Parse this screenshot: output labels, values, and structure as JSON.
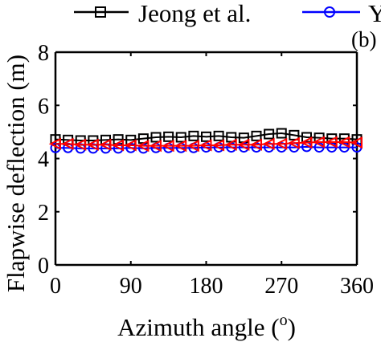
{
  "chart_data": {
    "type": "line",
    "title": "",
    "panel_label": "(b)",
    "xlabel": "Azimuth angle (",
    "xlabel_sup": "o",
    "xlabel_close": ")",
    "ylabel": "Flapwise deflection (m)",
    "xlim": [
      0,
      360
    ],
    "ylim": [
      0,
      8
    ],
    "xticks": [
      0,
      90,
      180,
      270,
      360
    ],
    "yticks": [
      0,
      2,
      4,
      6,
      8
    ],
    "grid": false,
    "legend_position": "top",
    "legend_truncated": "Y",
    "series": [
      {
        "name": "Jeong et al.",
        "color": "#000000",
        "marker": "square",
        "x": [
          0,
          15,
          30,
          45,
          60,
          75,
          90,
          105,
          120,
          135,
          150,
          165,
          180,
          195,
          210,
          225,
          240,
          255,
          270,
          285,
          300,
          315,
          330,
          345,
          360
        ],
        "y": [
          4.72,
          4.7,
          4.68,
          4.68,
          4.7,
          4.72,
          4.7,
          4.75,
          4.8,
          4.82,
          4.8,
          4.85,
          4.82,
          4.85,
          4.8,
          4.78,
          4.85,
          4.92,
          4.95,
          4.88,
          4.8,
          4.78,
          4.75,
          4.75,
          4.72
        ]
      },
      {
        "name": "",
        "color": "#0000ff",
        "marker": "circle",
        "x": [
          0,
          15,
          30,
          45,
          60,
          75,
          90,
          105,
          120,
          135,
          150,
          165,
          180,
          195,
          210,
          225,
          240,
          255,
          270,
          285,
          300,
          315,
          330,
          345,
          360
        ],
        "y": [
          4.4,
          4.4,
          4.38,
          4.38,
          4.38,
          4.38,
          4.4,
          4.38,
          4.4,
          4.4,
          4.4,
          4.4,
          4.42,
          4.42,
          4.42,
          4.42,
          4.42,
          4.42,
          4.42,
          4.42,
          4.44,
          4.42,
          4.42,
          4.42,
          4.42
        ]
      },
      {
        "name": "",
        "color": "#ff0000",
        "marker": "triangle-left",
        "x": [
          0,
          15,
          30,
          45,
          60,
          75,
          90,
          105,
          120,
          135,
          150,
          165,
          180,
          195,
          210,
          225,
          240,
          255,
          270,
          285,
          300,
          315,
          330,
          345,
          360
        ],
        "y": [
          4.55,
          4.55,
          4.52,
          4.52,
          4.52,
          4.5,
          4.5,
          4.48,
          4.48,
          4.48,
          4.48,
          4.48,
          4.5,
          4.5,
          4.52,
          4.52,
          4.52,
          4.55,
          4.55,
          4.58,
          4.6,
          4.62,
          4.62,
          4.62,
          4.6
        ]
      }
    ]
  }
}
